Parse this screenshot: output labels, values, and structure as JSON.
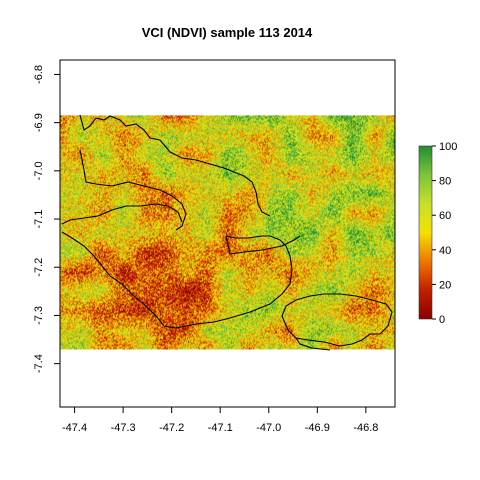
{
  "chart_data": {
    "type": "heatmap",
    "title": "VCI (NDVI) sample 113 2014",
    "xlabel": "",
    "ylabel": "",
    "x_ticks": [
      "-47.4",
      "-47.3",
      "-47.2",
      "-47.1",
      "-47.0",
      "-46.9",
      "-46.8"
    ],
    "y_ticks": [
      "-6.8",
      "-6.9",
      "-7.0",
      "-7.1",
      "-7.2",
      "-7.3",
      "-7.4"
    ],
    "xlim": [
      -47.43,
      -46.74
    ],
    "ylim": [
      -7.49,
      -6.77
    ],
    "raster_extent": {
      "x": [
        -47.43,
        -46.74
      ],
      "y": [
        -7.37,
        -6.885
      ]
    },
    "value_range": [
      0,
      100
    ],
    "legend": {
      "position": "right",
      "ticks": [
        "0",
        "20",
        "40",
        "60",
        "80",
        "100"
      ],
      "colors": [
        "#8b0000",
        "#c41d00",
        "#ee7700",
        "#f4e000",
        "#c6e028",
        "#7cc43a",
        "#1f8f2f"
      ]
    },
    "grid": false,
    "boundary_color": "#000000"
  }
}
